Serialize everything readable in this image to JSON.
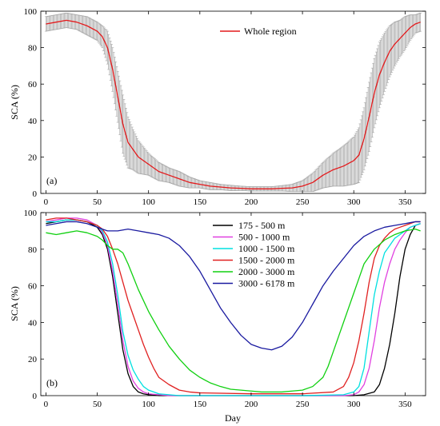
{
  "chart_data": [
    {
      "type": "line",
      "panel_label": "(a)",
      "xlabel": "",
      "ylabel": "SCA (%)",
      "xlim": [
        -5,
        370
      ],
      "ylim": [
        0,
        100
      ],
      "xticks": [
        "0",
        "50",
        "100",
        "150",
        "200",
        "250",
        "300",
        "350"
      ],
      "yticks": [
        "0",
        "20",
        "40",
        "60",
        "80",
        "100"
      ],
      "legend_position": "top-center",
      "error_bars": true,
      "colors": {
        "series": "#e41a1c",
        "error_band": "#a8a8a8"
      },
      "series": [
        {
          "name": "Whole region",
          "x": [
            0,
            10,
            20,
            30,
            40,
            50,
            55,
            60,
            65,
            70,
            75,
            80,
            85,
            90,
            100,
            110,
            120,
            130,
            140,
            150,
            160,
            170,
            180,
            190,
            200,
            210,
            220,
            230,
            240,
            250,
            260,
            270,
            280,
            290,
            300,
            305,
            310,
            315,
            320,
            325,
            330,
            335,
            340,
            345,
            350,
            355,
            360,
            365
          ],
          "y": [
            93,
            94,
            95,
            94,
            92,
            89,
            86,
            80,
            68,
            53,
            38,
            28,
            24,
            20,
            16,
            12,
            10,
            8,
            6,
            5,
            4,
            3.5,
            3,
            2.8,
            2.5,
            2.5,
            2.5,
            2.8,
            3,
            4,
            6,
            10,
            13,
            15,
            18,
            21,
            30,
            42,
            55,
            65,
            72,
            78,
            82,
            85,
            88,
            91,
            93,
            94
          ],
          "error": [
            4,
            4,
            4,
            4,
            5,
            5,
            6,
            9,
            12,
            14,
            16,
            14,
            11,
            9,
            6,
            5,
            4,
            4,
            3,
            2,
            2,
            1.5,
            1.5,
            1.2,
            1.2,
            1.2,
            1.2,
            1.5,
            2,
            3,
            5,
            7,
            9,
            11,
            13,
            15,
            17,
            19,
            19,
            18,
            16,
            14,
            12,
            10,
            9,
            7,
            5,
            5
          ]
        }
      ]
    },
    {
      "type": "line",
      "panel_label": "(b)",
      "xlabel": "Day",
      "ylabel": "SCA (%)",
      "xlim": [
        -5,
        370
      ],
      "ylim": [
        0,
        100
      ],
      "xticks": [
        "0",
        "50",
        "100",
        "150",
        "200",
        "250",
        "300",
        "350"
      ],
      "yticks": [
        "0",
        "20",
        "40",
        "60",
        "80",
        "100"
      ],
      "legend_position": "top-right",
      "series": [
        {
          "name": "175 - 500 m",
          "color": "#000000",
          "x": [
            0,
            10,
            20,
            30,
            40,
            50,
            55,
            60,
            65,
            70,
            75,
            80,
            85,
            90,
            95,
            100,
            110,
            120,
            150,
            200,
            250,
            300,
            310,
            320,
            325,
            330,
            335,
            340,
            345,
            350,
            355,
            360,
            365
          ],
          "y": [
            94,
            95,
            96,
            96,
            95,
            92,
            88,
            80,
            65,
            45,
            25,
            12,
            5,
            2,
            1,
            0.5,
            0,
            0,
            0,
            0,
            0,
            0,
            0.5,
            2,
            6,
            15,
            28,
            45,
            65,
            80,
            88,
            93,
            94
          ]
        },
        {
          "name": "500 - 1000 m",
          "color": "#e040e0",
          "x": [
            0,
            10,
            20,
            30,
            40,
            50,
            55,
            60,
            65,
            70,
            75,
            80,
            85,
            90,
            95,
            100,
            110,
            120,
            150,
            200,
            250,
            290,
            300,
            305,
            310,
            315,
            320,
            325,
            330,
            335,
            340,
            345,
            350,
            355,
            360,
            365
          ],
          "y": [
            95,
            96,
            97,
            97,
            96,
            93,
            89,
            82,
            68,
            50,
            30,
            16,
            8,
            4,
            2,
            1,
            0.5,
            0,
            0,
            0,
            0,
            0,
            0.5,
            2,
            6,
            15,
            30,
            48,
            62,
            72,
            80,
            85,
            89,
            92,
            93,
            94
          ]
        },
        {
          "name": "1000 - 1500 m",
          "color": "#00e0e0",
          "x": [
            0,
            10,
            20,
            30,
            40,
            50,
            55,
            60,
            65,
            70,
            75,
            80,
            85,
            90,
            95,
            100,
            105,
            110,
            120,
            130,
            150,
            200,
            250,
            290,
            300,
            305,
            310,
            315,
            320,
            325,
            330,
            335,
            340,
            345,
            350,
            355,
            360,
            365
          ],
          "y": [
            95,
            95,
            96,
            96,
            95,
            93,
            90,
            84,
            72,
            55,
            35,
            22,
            14,
            9,
            5,
            3,
            2,
            1,
            0.5,
            0,
            0,
            0,
            0,
            0.5,
            2,
            5,
            15,
            35,
            55,
            68,
            78,
            82,
            86,
            88,
            90,
            92,
            93,
            94
          ]
        },
        {
          "name": "1500 - 2000 m",
          "color": "#e02020",
          "x": [
            0,
            10,
            20,
            30,
            40,
            50,
            55,
            60,
            65,
            70,
            75,
            80,
            85,
            90,
            95,
            100,
            105,
            110,
            120,
            130,
            140,
            150,
            200,
            250,
            280,
            290,
            295,
            300,
            305,
            310,
            315,
            320,
            325,
            330,
            335,
            340,
            345,
            350,
            355,
            360,
            365
          ],
          "y": [
            96,
            97,
            97,
            96,
            95,
            93,
            91,
            87,
            80,
            72,
            62,
            52,
            44,
            36,
            28,
            21,
            15,
            10,
            6,
            3,
            2,
            1.5,
            1,
            1,
            2,
            5,
            10,
            18,
            30,
            45,
            62,
            75,
            82,
            86,
            89,
            91,
            92,
            93,
            94,
            95,
            95
          ]
        },
        {
          "name": "2000 - 3000 m",
          "color": "#10d010",
          "x": [
            0,
            10,
            20,
            30,
            40,
            50,
            55,
            60,
            65,
            70,
            75,
            80,
            85,
            90,
            95,
            100,
            110,
            120,
            130,
            140,
            150,
            160,
            170,
            180,
            190,
            200,
            210,
            220,
            230,
            240,
            250,
            260,
            270,
            275,
            280,
            285,
            290,
            295,
            300,
            305,
            310,
            320,
            330,
            340,
            350,
            360,
            365
          ],
          "y": [
            89,
            88,
            89,
            90,
            89,
            87,
            85,
            82,
            80,
            80,
            78,
            72,
            65,
            58,
            52,
            46,
            36,
            27,
            20,
            14,
            10,
            7,
            5,
            3.5,
            3,
            2.5,
            2,
            2,
            2,
            2.5,
            3,
            5,
            10,
            16,
            24,
            32,
            40,
            48,
            56,
            64,
            72,
            80,
            85,
            88,
            90,
            91,
            90
          ]
        },
        {
          "name": "3000 - 6178 m",
          "color": "#1a1aa0",
          "x": [
            0,
            10,
            20,
            30,
            40,
            50,
            60,
            70,
            80,
            90,
            100,
            110,
            120,
            130,
            140,
            150,
            160,
            170,
            180,
            190,
            200,
            210,
            220,
            230,
            240,
            250,
            260,
            270,
            280,
            290,
            300,
            310,
            320,
            330,
            340,
            350,
            360,
            365
          ],
          "y": [
            93,
            94,
            95,
            95,
            94,
            92,
            90,
            90,
            91,
            90,
            89,
            88,
            86,
            82,
            76,
            68,
            58,
            48,
            40,
            33,
            28,
            26,
            25,
            27,
            32,
            40,
            50,
            60,
            68,
            75,
            82,
            87,
            90,
            92,
            93,
            94,
            95,
            95
          ]
        }
      ]
    }
  ]
}
